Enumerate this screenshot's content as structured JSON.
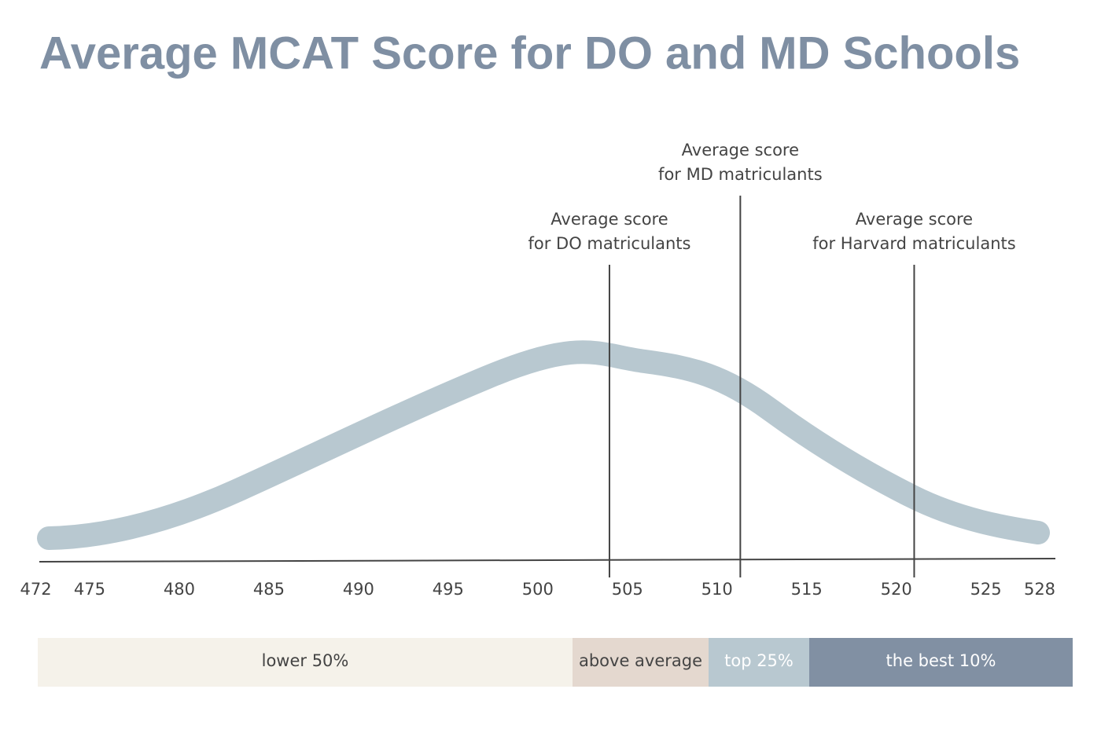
{
  "chart_data": {
    "type": "line",
    "title": "Average MCAT Score for DO and MD Schools",
    "xlim": [
      472,
      528
    ],
    "xticks": [
      472,
      475,
      480,
      485,
      490,
      495,
      500,
      505,
      510,
      515,
      520,
      525,
      528
    ],
    "curve_color": "#b8c8d0",
    "annotations": [
      {
        "value": 504,
        "text": [
          "Average score",
          "for DO matriculants"
        ]
      },
      {
        "value": 511.3,
        "text": [
          "Average score",
          "for MD matriculants"
        ]
      },
      {
        "value": 521,
        "text": [
          "Average score",
          "for Harvard matriculants"
        ]
      }
    ],
    "bands": [
      {
        "label": "lower 50%",
        "color": "#f5f2ea",
        "text_color": "#444444"
      },
      {
        "label": "above average",
        "color": "#e4d8cf",
        "text_color": "#444444"
      },
      {
        "label": "top 25%",
        "color": "#b8c8d0",
        "text_color": "#ffffff"
      },
      {
        "label": "the best 10%",
        "color": "#8190a3",
        "text_color": "#ffffff"
      }
    ]
  }
}
